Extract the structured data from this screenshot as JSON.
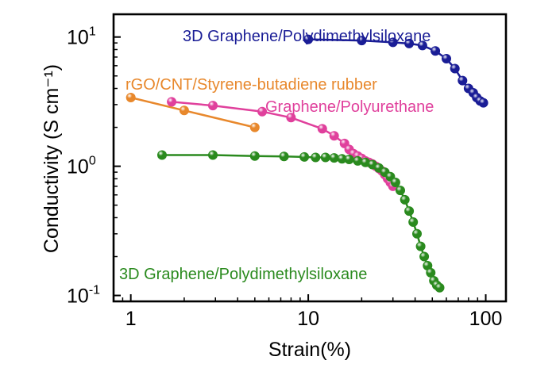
{
  "chart_data": {
    "type": "scatter",
    "xscale": "log",
    "yscale": "log",
    "xlabel": "Strain(%)",
    "ylabel": "Conductivity (S cm⁻¹)",
    "xlim": [
      0.8,
      130
    ],
    "ylim": [
      0.09,
      15
    ],
    "xticks": [
      {
        "value": 1,
        "label": "1"
      },
      {
        "value": 10,
        "label": "10"
      },
      {
        "value": 100,
        "label": "100"
      }
    ],
    "yticks": [
      {
        "value": 0.1,
        "base": "10",
        "exp": "-1"
      },
      {
        "value": 1,
        "base": "10",
        "exp": "0"
      },
      {
        "value": 10,
        "base": "10",
        "exp": "1"
      }
    ],
    "series": [
      {
        "name": "3D Graphene/Polydimethylsiloxane",
        "color": "#1a1d96",
        "label_pos": "top-right",
        "x": [
          10,
          20,
          30,
          37,
          44,
          52,
          60,
          67,
          74,
          80,
          85,
          89,
          93,
          97
        ],
        "y": [
          9.6,
          9.4,
          9.1,
          8.9,
          8.6,
          7.8,
          6.8,
          5.7,
          4.6,
          4.0,
          3.7,
          3.4,
          3.2,
          3.1
        ]
      },
      {
        "name": "rGO/CNT/Styrene-butadiene rubber",
        "color": "#e8882c",
        "label_pos": "upper-left",
        "x": [
          1,
          2,
          5
        ],
        "y": [
          3.4,
          2.7,
          2.0
        ]
      },
      {
        "name": "Graphene/Polyurethane",
        "color": "#e0409c",
        "label_pos": "middle-right",
        "x": [
          1.7,
          2.9,
          5.5,
          8,
          12,
          14,
          16,
          17,
          18,
          19,
          20,
          21,
          22,
          23,
          24,
          25,
          26,
          27,
          28,
          29,
          30
        ],
        "y": [
          3.15,
          2.95,
          2.65,
          2.38,
          1.95,
          1.72,
          1.5,
          1.35,
          1.25,
          1.2,
          1.15,
          1.1,
          1.07,
          1.04,
          1.0,
          0.96,
          0.92,
          0.86,
          0.8,
          0.75,
          0.7
        ]
      },
      {
        "name": "3D Graphene/Polydimethylsiloxane",
        "color": "#2a8a1e",
        "label_pos": "bottom-left",
        "x": [
          1.5,
          2.9,
          5,
          7.3,
          9.5,
          11,
          12.5,
          14,
          15.5,
          17,
          19,
          21,
          23,
          25,
          27,
          29,
          31,
          33,
          35,
          37,
          39,
          41,
          43,
          45,
          47,
          49,
          51,
          53,
          55
        ],
        "y": [
          1.22,
          1.22,
          1.2,
          1.19,
          1.18,
          1.17,
          1.17,
          1.16,
          1.14,
          1.13,
          1.1,
          1.07,
          1.03,
          0.97,
          0.9,
          0.83,
          0.75,
          0.65,
          0.55,
          0.45,
          0.37,
          0.3,
          0.24,
          0.2,
          0.17,
          0.15,
          0.13,
          0.12,
          0.115
        ]
      }
    ]
  }
}
